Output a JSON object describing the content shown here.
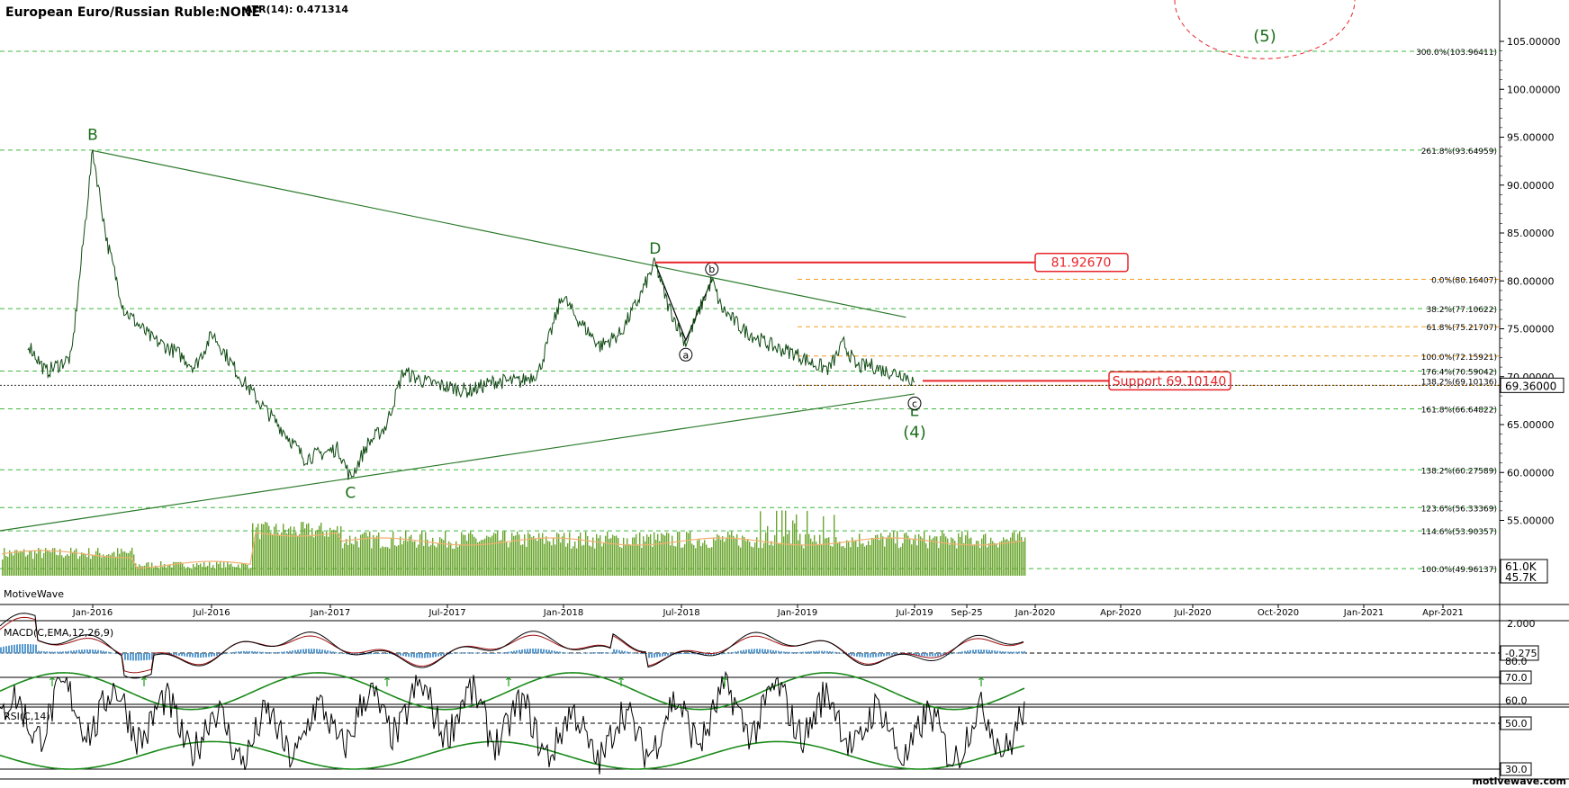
{
  "header": {
    "symbol": "European Euro/Russian Ruble:NONE",
    "atr": "ATR(14): 0.471314"
  },
  "watermark_left": "MotiveWave",
  "watermark_right": "motivewave.com",
  "colors": {
    "price": "#0f4a12",
    "wave_label": "#1a6e1a",
    "green_dash": "#3fb83f",
    "orange_dash": "#f0a020",
    "red": "#e8242a",
    "volume": "#6aa62e",
    "volume_ma": "#f0b070",
    "macd": "#000000",
    "macd_signal": "#a01010",
    "macd_hist": "#5a9bd0",
    "rsi": "#000000",
    "rsi_band": "#1a8a1a"
  },
  "chart_data": {
    "type": "line",
    "title": "European Euro/Russian Ruble:NONE",
    "x_axis_ticks": [
      "Jan-2016",
      "Jul-2016",
      "Jan-2017",
      "Jul-2017",
      "Jan-2018",
      "Jul-2018",
      "Jan-2019",
      "Jul-2019",
      "Sep-25",
      "Jan-2020",
      "Apr-2020",
      "Jul-2020",
      "Oct-2020",
      "Jan-2021",
      "Apr-2021"
    ],
    "y_axis_ticks": [
      "105.00000",
      "100.00000",
      "95.00000",
      "90.00000",
      "85.00000",
      "80.00000",
      "75.00000",
      "70.00000",
      "65.00000",
      "60.00000",
      "55.00000"
    ],
    "ylim": [
      49.5,
      110
    ],
    "last_price": "69.36000",
    "price_series": {
      "x": [
        "2015-10-01",
        "2015-11-01",
        "2015-12-15",
        "2016-01-21",
        "2016-02-15",
        "2016-03-15",
        "2016-05-01",
        "2016-06-15",
        "2016-07-15",
        "2016-08-15",
        "2016-10-01",
        "2016-11-15",
        "2016-12-20",
        "2017-01-20",
        "2017-02-20",
        "2017-03-20",
        "2017-04-10",
        "2017-05-10",
        "2017-06-10",
        "2017-07-10",
        "2017-08-15",
        "2017-09-20",
        "2017-11-01",
        "2017-12-15",
        "2018-01-30",
        "2018-03-01",
        "2018-04-11",
        "2018-05-01",
        "2018-06-15",
        "2018-07-20",
        "2018-08-20",
        "2018-09-18",
        "2018-10-10",
        "2018-11-10",
        "2018-12-25",
        "2019-01-10",
        "2019-02-15",
        "2019-03-20",
        "2019-04-15",
        "2019-05-15",
        "2019-06-20",
        "2019-07-15",
        "2019-08-10",
        "2019-09-01",
        "2019-09-25",
        "2019-10-20",
        "2019-11-20",
        "2019-12-10"
      ],
      "y": [
        73.5,
        70.5,
        72.0,
        93.6,
        84.0,
        77.0,
        74.0,
        72.5,
        71.0,
        74.5,
        70.0,
        66.5,
        64.0,
        61.5,
        62.0,
        62.5,
        59.4,
        63.0,
        64.8,
        70.5,
        69.5,
        69.0,
        68.5,
        69.5,
        69.5,
        70.5,
        78.5,
        76.5,
        73.2,
        74.5,
        78.0,
        81.9,
        77.5,
        73.5,
        80.1,
        77.2,
        75.0,
        73.8,
        73.0,
        72.5,
        71.3,
        70.8,
        73.5,
        71.0,
        71.2,
        70.6,
        70.3,
        69.4
      ]
    },
    "wave_labels": [
      "B",
      "C",
      "D",
      "E",
      "(4)",
      "(5)",
      "a",
      "b",
      "c"
    ],
    "trendline_points": [
      [
        "2016-01-21",
        93.6
      ],
      [
        "2019-11-25",
        76.2
      ],
      [
        "2015-09-01",
        53.5
      ],
      [
        "2019-12-10",
        68.2
      ]
    ],
    "fib_levels_green": [
      {
        "label": "300.0%(103.96411)",
        "value": 103.96411
      },
      {
        "label": "261.8%(93.64959)",
        "value": 93.64959
      },
      {
        "label": "38.2%(77.10622)",
        "value": 77.10622
      },
      {
        "label": "176.4%(70.59042)",
        "value": 70.59042
      },
      {
        "label": "161.8%(66.64822)",
        "value": 66.64822
      },
      {
        "label": "138.2%(60.27589)",
        "value": 60.27589
      },
      {
        "label": "123.6%(56.33369)",
        "value": 56.33369
      },
      {
        "label": "114.6%(53.90357)",
        "value": 53.90357
      },
      {
        "label": "100.0%(49.96137)",
        "value": 49.96137
      }
    ],
    "fib_levels_orange": [
      {
        "label": "0.0%(80.16407)",
        "value": 80.16407
      },
      {
        "label": "61.8%(75.21707)",
        "value": 75.21707
      },
      {
        "label": "100.0%(72.15921)",
        "value": 72.15921
      },
      {
        "label": "138.2%(69.10136)",
        "value": 69.10136
      }
    ],
    "red_resistance": {
      "label": "81.92670",
      "value": 81.9267
    },
    "red_support": {
      "label": "Support 69.10140",
      "value": 69.1014
    },
    "volume_labels": [
      "61.0K",
      "45.7K"
    ],
    "macd": {
      "label": "MACD(C,EMA,12,26,9)",
      "ticks": [
        "2.000",
        "-0.275"
      ],
      "ylim": [
        -2.5,
        3.4
      ]
    },
    "rsi": {
      "label": "RSI(C,14)",
      "ticks": [
        "80.0",
        "70.0",
        "60.0",
        "50.0",
        "30.0"
      ],
      "ylim": [
        20,
        85
      ]
    }
  }
}
